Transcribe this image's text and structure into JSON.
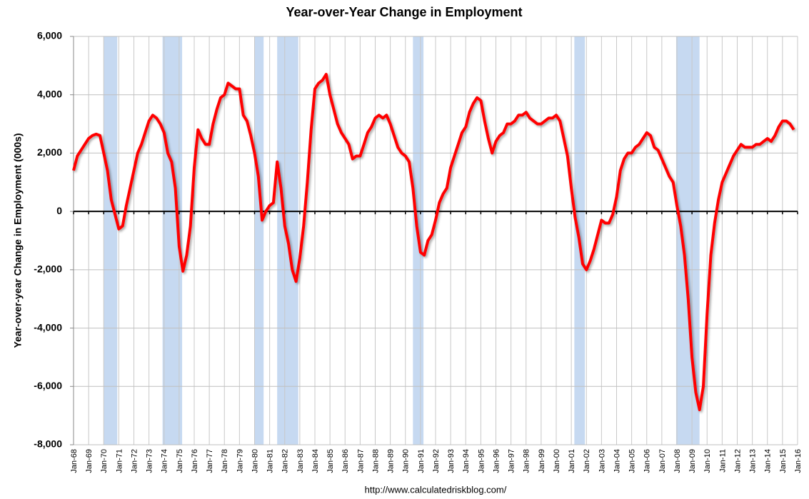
{
  "chart_data": {
    "type": "line",
    "title": "Year-over-Year Change in Employment",
    "ylabel": "Year-over-year Change in Employment (000s)",
    "source": "http://www.calculatedriskblog.com/",
    "xlim": [
      1968,
      2016
    ],
    "ylim": [
      -8000,
      6000
    ],
    "yticks": [
      {
        "value": -8000,
        "label": "-8,000"
      },
      {
        "value": -6000,
        "label": "-6,000"
      },
      {
        "value": -4000,
        "label": "-4,000"
      },
      {
        "value": -2000,
        "label": "-2,000"
      },
      0,
      {
        "value": 2000,
        "label": "2,000"
      },
      {
        "value": 4000,
        "label": "4,000"
      },
      {
        "value": 6000,
        "label": "6,000"
      }
    ],
    "xticks": [
      {
        "value": 1968,
        "label": "Jan-68"
      },
      {
        "value": 1969,
        "label": "Jan-69"
      },
      {
        "value": 1970,
        "label": "Jan-70"
      },
      {
        "value": 1971,
        "label": "Jan-71"
      },
      {
        "value": 1972,
        "label": "Jan-72"
      },
      {
        "value": 1973,
        "label": "Jan-73"
      },
      {
        "value": 1974,
        "label": "Jan-74"
      },
      {
        "value": 1975,
        "label": "Jan-75"
      },
      {
        "value": 1976,
        "label": "Jan-76"
      },
      {
        "value": 1977,
        "label": "Jan-77"
      },
      {
        "value": 1978,
        "label": "Jan-78"
      },
      {
        "value": 1979,
        "label": "Jan-79"
      },
      {
        "value": 1980,
        "label": "Jan-80"
      },
      {
        "value": 1981,
        "label": "Jan-81"
      },
      {
        "value": 1982,
        "label": "Jan-82"
      },
      {
        "value": 1983,
        "label": "Jan-83"
      },
      {
        "value": 1984,
        "label": "Jan-84"
      },
      {
        "value": 1985,
        "label": "Jan-85"
      },
      {
        "value": 1986,
        "label": "Jan-86"
      },
      {
        "value": 1987,
        "label": "Jan-87"
      },
      {
        "value": 1988,
        "label": "Jan-88"
      },
      {
        "value": 1989,
        "label": "Jan-89"
      },
      {
        "value": 1990,
        "label": "Jan-90"
      },
      {
        "value": 1991,
        "label": "Jan-91"
      },
      {
        "value": 1992,
        "label": "Jan-92"
      },
      {
        "value": 1993,
        "label": "Jan-93"
      },
      {
        "value": 1994,
        "label": "Jan-94"
      },
      {
        "value": 1995,
        "label": "Jan-95"
      },
      {
        "value": 1996,
        "label": "Jan-96"
      },
      {
        "value": 1997,
        "label": "Jan-97"
      },
      {
        "value": 1998,
        "label": "Jan-98"
      },
      {
        "value": 1999,
        "label": "Jan-99"
      },
      {
        "value": 2000,
        "label": "Jan-00"
      },
      {
        "value": 2001,
        "label": "Jan-01"
      },
      {
        "value": 2002,
        "label": "Jan-02"
      },
      {
        "value": 2003,
        "label": "Jan-03"
      },
      {
        "value": 2004,
        "label": "Jan-04"
      },
      {
        "value": 2005,
        "label": "Jan-05"
      },
      {
        "value": 2006,
        "label": "Jan-06"
      },
      {
        "value": 2007,
        "label": "Jan-07"
      },
      {
        "value": 2008,
        "label": "Jan-08"
      },
      {
        "value": 2009,
        "label": "Jan-09"
      },
      {
        "value": 2010,
        "label": "Jan-10"
      },
      {
        "value": 2011,
        "label": "Jan-11"
      },
      {
        "value": 2012,
        "label": "Jan-12"
      },
      {
        "value": 2013,
        "label": "Jan-13"
      },
      {
        "value": 2014,
        "label": "Jan-14"
      },
      {
        "value": 2015,
        "label": "Jan-15"
      },
      {
        "value": 2016,
        "label": "Jan-16"
      }
    ],
    "grid": true,
    "recession_color": "#c6d9f1",
    "recessions": [
      [
        1970.0,
        1970.9
      ],
      [
        1973.9,
        1975.2
      ],
      [
        1980.0,
        1980.6
      ],
      [
        1981.5,
        1982.9
      ],
      [
        1990.5,
        1991.2
      ],
      [
        2001.2,
        2001.9
      ],
      [
        2007.95,
        2009.5
      ]
    ],
    "x": [
      1968,
      1968.25,
      1968.5,
      1968.75,
      1969,
      1969.25,
      1969.5,
      1969.75,
      1970,
      1970.25,
      1970.5,
      1970.75,
      1971,
      1971.25,
      1971.5,
      1971.75,
      1972,
      1972.25,
      1972.5,
      1972.75,
      1973,
      1973.25,
      1973.5,
      1973.75,
      1974,
      1974.25,
      1974.5,
      1974.75,
      1975,
      1975.25,
      1975.5,
      1975.75,
      1976,
      1976.25,
      1976.5,
      1976.75,
      1977,
      1977.25,
      1977.5,
      1977.75,
      1978,
      1978.25,
      1978.5,
      1978.75,
      1979,
      1979.25,
      1979.5,
      1979.75,
      1980,
      1980.25,
      1980.5,
      1980.75,
      1981,
      1981.25,
      1981.5,
      1981.75,
      1982,
      1982.25,
      1982.5,
      1982.75,
      1983,
      1983.25,
      1983.5,
      1983.75,
      1984,
      1984.25,
      1984.5,
      1984.75,
      1985,
      1985.25,
      1985.5,
      1985.75,
      1986,
      1986.25,
      1986.5,
      1986.75,
      1987,
      1987.25,
      1987.5,
      1987.75,
      1988,
      1988.25,
      1988.5,
      1988.75,
      1989,
      1989.25,
      1989.5,
      1989.75,
      1990,
      1990.25,
      1990.5,
      1990.75,
      1991,
      1991.25,
      1991.5,
      1991.75,
      1992,
      1992.25,
      1992.5,
      1992.75,
      1993,
      1993.25,
      1993.5,
      1993.75,
      1994,
      1994.25,
      1994.5,
      1994.75,
      1995,
      1995.25,
      1995.5,
      1995.75,
      1996,
      1996.25,
      1996.5,
      1996.75,
      1997,
      1997.25,
      1997.5,
      1997.75,
      1998,
      1998.25,
      1998.5,
      1998.75,
      1999,
      1999.25,
      1999.5,
      1999.75,
      2000,
      2000.25,
      2000.5,
      2000.75,
      2001,
      2001.25,
      2001.5,
      2001.75,
      2002,
      2002.25,
      2002.5,
      2002.75,
      2003,
      2003.25,
      2003.5,
      2003.75,
      2004,
      2004.25,
      2004.5,
      2004.75,
      2005,
      2005.25,
      2005.5,
      2005.75,
      2006,
      2006.25,
      2006.5,
      2006.75,
      2007,
      2007.25,
      2007.5,
      2007.75,
      2008,
      2008.25,
      2008.5,
      2008.75,
      2009,
      2009.25,
      2009.5,
      2009.75,
      2010,
      2010.25,
      2010.5,
      2010.75,
      2011,
      2011.25,
      2011.5,
      2011.75,
      2012,
      2012.25,
      2012.5,
      2012.75,
      2013,
      2013.25,
      2013.5,
      2013.75,
      2014,
      2014.25,
      2014.5,
      2014.75,
      2015,
      2015.25,
      2015.5,
      2015.75
    ],
    "series": [
      {
        "color": "#ff0000",
        "values": [
          1400,
          1900,
          2100,
          2300,
          2500,
          2600,
          2650,
          2600,
          2000,
          1400,
          400,
          -100,
          -600,
          -500,
          200,
          800,
          1400,
          2000,
          2300,
          2700,
          3100,
          3300,
          3200,
          3000,
          2700,
          2000,
          1700,
          800,
          -1200,
          -2050,
          -1500,
          -500,
          1500,
          2800,
          2500,
          2300,
          2300,
          3000,
          3500,
          3900,
          4000,
          4400,
          4300,
          4200,
          4200,
          3300,
          3100,
          2600,
          2000,
          1200,
          -300,
          0,
          200,
          300,
          1700,
          800,
          -500,
          -1100,
          -2000,
          -2400,
          -1600,
          -500,
          1000,
          2800,
          4200,
          4400,
          4500,
          4700,
          4000,
          3500,
          3000,
          2700,
          2500,
          2300,
          1800,
          1900,
          1900,
          2300,
          2700,
          2900,
          3200,
          3300,
          3200,
          3300,
          3000,
          2600,
          2200,
          2000,
          1900,
          1700,
          800,
          -500,
          -1400,
          -1500,
          -1000,
          -800,
          -300,
          300,
          600,
          800,
          1500,
          1900,
          2300,
          2700,
          2900,
          3400,
          3700,
          3900,
          3800,
          3100,
          2500,
          2000,
          2400,
          2600,
          2700,
          3000,
          3000,
          3100,
          3300,
          3300,
          3400,
          3200,
          3100,
          3000,
          3000,
          3100,
          3200,
          3200,
          3300,
          3100,
          2500,
          1900,
          800,
          -200,
          -900,
          -1800,
          -2000,
          -1700,
          -1300,
          -800,
          -300,
          -400,
          -400,
          -100,
          500,
          1400,
          1800,
          2000,
          2000,
          2200,
          2300,
          2500,
          2700,
          2600,
          2200,
          2100,
          1800,
          1500,
          1200,
          1000,
          200,
          -500,
          -1500,
          -3000,
          -5000,
          -6200,
          -6800,
          -6000,
          -3500,
          -1500,
          -400,
          400,
          1000,
          1300,
          1600,
          1900,
          2100,
          2300,
          2200,
          2200,
          2200,
          2300,
          2300,
          2400,
          2500,
          2400,
          2600,
          2900,
          3100,
          3100,
          3000,
          2800
        ]
      }
    ]
  }
}
